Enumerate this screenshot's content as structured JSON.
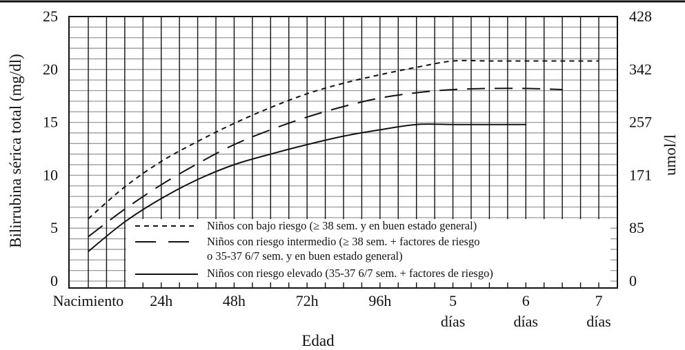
{
  "chart_data": {
    "type": "line",
    "xlabel": "Edad",
    "ylabel_left": "Bilirrubina sérica total (mg/dl)",
    "ylabel_right": "umol/l",
    "x_ticks": [
      {
        "x": 0,
        "lines": [
          "Nacimiento"
        ]
      },
      {
        "x": 24,
        "lines": [
          "24h"
        ]
      },
      {
        "x": 48,
        "lines": [
          "48h"
        ]
      },
      {
        "x": 72,
        "lines": [
          "72h"
        ]
      },
      {
        "x": 96,
        "lines": [
          "96h"
        ]
      },
      {
        "x": 120,
        "lines": [
          "5",
          "días"
        ]
      },
      {
        "x": 144,
        "lines": [
          "6",
          "días"
        ]
      },
      {
        "x": 168,
        "lines": [
          "7",
          "días"
        ]
      }
    ],
    "y_ticks_left": [
      "0",
      "5",
      "10",
      "15",
      "20",
      "25"
    ],
    "y_ticks_right": [
      {
        "value": 0,
        "label": "0"
      },
      {
        "value": 5,
        "label": "85"
      },
      {
        "value": 10,
        "label": "171"
      },
      {
        "value": 15,
        "label": "257"
      },
      {
        "value": 20,
        "label": "342"
      },
      {
        "value": 25,
        "label": "428"
      }
    ],
    "xlim": [
      -5,
      180
    ],
    "ylim": [
      -0.5,
      25
    ],
    "grid": true,
    "legend_position": "bottom-center",
    "series": [
      {
        "name": "Niños con bajo riesgo (≥ 38 sem. y en buen estado general)",
        "dash": "short",
        "x": [
          0,
          12,
          24,
          36,
          48,
          60,
          72,
          84,
          96,
          108,
          120,
          132,
          144,
          156,
          168
        ],
        "y": [
          5.9,
          8.9,
          11.3,
          13.2,
          14.9,
          16.4,
          17.7,
          18.7,
          19.5,
          20.2,
          20.8,
          20.8,
          20.8,
          20.8,
          20.8
        ]
      },
      {
        "name": "Niños con riesgo intermedio (≥ 38 sem. + factores de riesgo o 35-37 6/7 sem. y en buen estado general)",
        "legend_lines": [
          "Niños con riesgo intermedio (≥ 38 sem. + factores de riesgo",
          "o 35-37 6/7 sem. y en buen estado general)"
        ],
        "dash": "long",
        "x": [
          0,
          12,
          24,
          36,
          48,
          60,
          72,
          84,
          96,
          108,
          120,
          132,
          144,
          156
        ],
        "y": [
          4.2,
          6.8,
          9.1,
          11.1,
          12.9,
          14.3,
          15.5,
          16.5,
          17.3,
          17.8,
          18.1,
          18.2,
          18.2,
          18.1
        ]
      },
      {
        "name": "Niños con riesgo elevado (35-37 6/7 sem. + factores de riesgo)",
        "dash": "solid",
        "x": [
          0,
          12,
          24,
          36,
          48,
          60,
          72,
          84,
          96,
          108,
          120,
          132,
          144
        ],
        "y": [
          2.8,
          5.6,
          7.8,
          9.6,
          11.0,
          12.0,
          12.9,
          13.7,
          14.3,
          14.8,
          14.8,
          14.8,
          14.8
        ]
      }
    ]
  }
}
